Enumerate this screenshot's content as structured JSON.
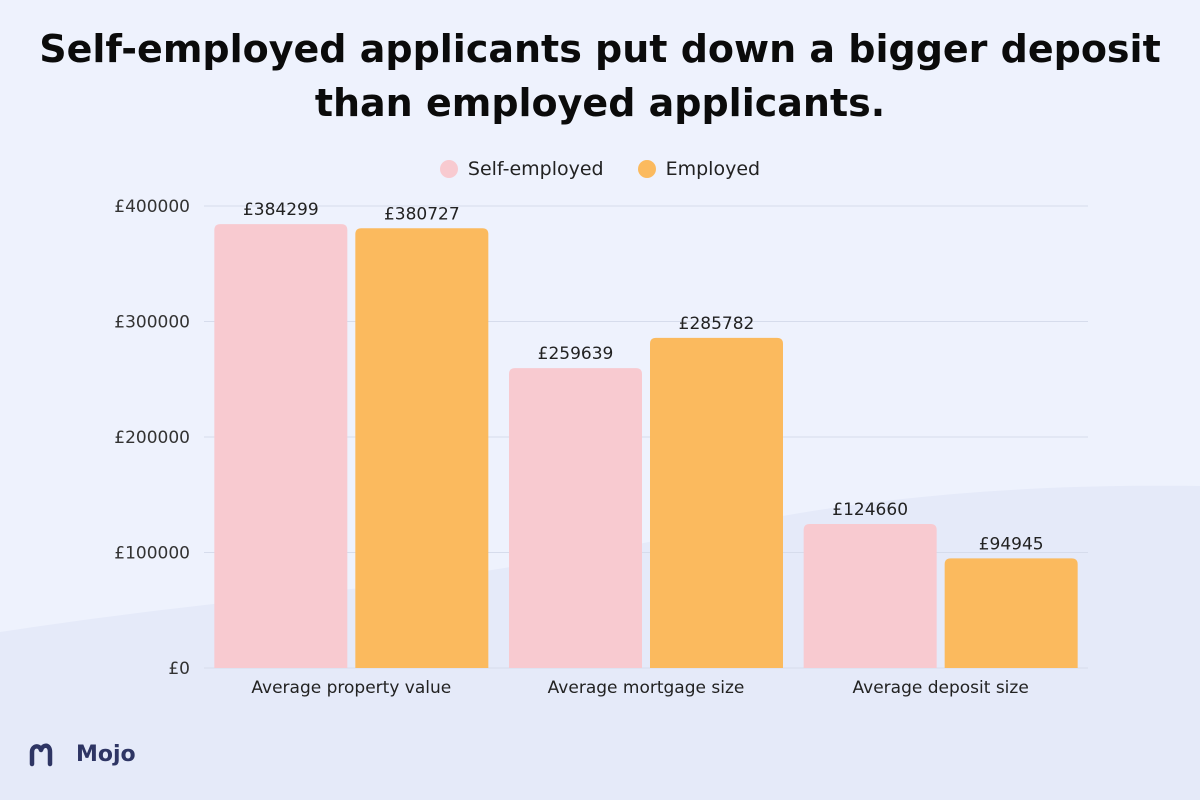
{
  "page": {
    "title": "Self-employed applicants put down a bigger deposit than employed applicants.",
    "brand": "Mojo"
  },
  "colors": {
    "background": "#eef2fd",
    "self_employed": "#f8cad0",
    "employed": "#fbba5e",
    "gridline": "#d6dcec",
    "brand": "#2e3564"
  },
  "chart_data": {
    "type": "bar",
    "title": "Self-employed applicants put down a bigger deposit than employed applicants.",
    "categories": [
      "Average property value",
      "Average mortgage size",
      "Average deposit size"
    ],
    "series": [
      {
        "name": "Self-employed",
        "values": [
          384299,
          259639,
          124660
        ],
        "labels": [
          "£384299",
          "£259639",
          "£124660"
        ]
      },
      {
        "name": "Employed",
        "values": [
          380727,
          285782,
          94945
        ],
        "labels": [
          "£380727",
          "£285782",
          "£94945"
        ]
      }
    ],
    "ylim": [
      0,
      400000
    ],
    "yticks": [
      0,
      100000,
      200000,
      300000,
      400000
    ],
    "ytick_labels": [
      "£0",
      "£100000",
      "£200000",
      "£300000",
      "£400000"
    ],
    "xlabel": "",
    "ylabel": "",
    "grid": true,
    "legend_position": "top-center"
  }
}
